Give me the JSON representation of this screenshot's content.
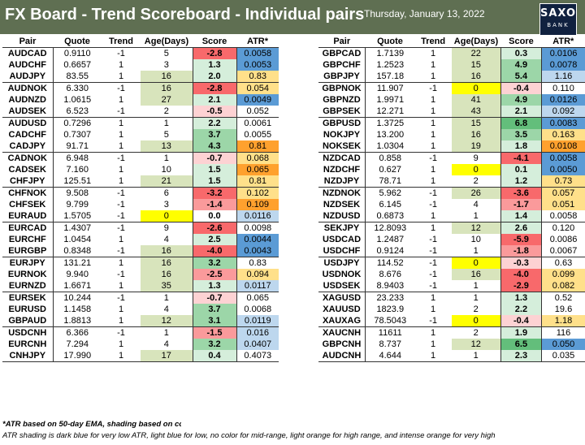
{
  "header": {
    "title": "FX Board - Trend Scoreboard - Individual pairs",
    "date": "Thursday, January 13, 2022",
    "logo_line1": "SAXO",
    "logo_line2": "BANK"
  },
  "columns": [
    "Pair",
    "Quote",
    "Trend",
    "Age(Days)",
    "Score",
    "ATR*"
  ],
  "shading_colors": {
    "age_yellow": "#ffff00",
    "age_green": "#d8e4bc",
    "score_red_strong": "#f8696b",
    "score_red_medium": "#fa9a9b",
    "score_red_light": "#fdd2d3",
    "score_green_strong": "#63be7b",
    "score_green_medium": "#9cd6a8",
    "score_green_light": "#d5eedb",
    "atr_dark_blue": "#5b9bd5",
    "atr_light_blue": "#bdd7ee",
    "atr_light_orange": "#ffe08a",
    "atr_intense_orange": "#ffa12e"
  },
  "left_table": {
    "groups": [
      [
        {
          "pair": "AUDCAD",
          "quote": "0.9110",
          "trend": "-1",
          "age": "5",
          "score": "-2.8",
          "atr": "0.0058",
          "age_c": "",
          "score_c": "score_red_strong",
          "atr_c": "atr_dark_blue"
        },
        {
          "pair": "AUDCHF",
          "quote": "0.6657",
          "trend": "1",
          "age": "3",
          "score": "1.3",
          "atr": "0.0053",
          "age_c": "",
          "score_c": "score_green_light",
          "atr_c": "atr_dark_blue"
        },
        {
          "pair": "AUDJPY",
          "quote": "83.55",
          "trend": "1",
          "age": "16",
          "score": "2.0",
          "atr": "0.83",
          "age_c": "age_green",
          "score_c": "score_green_light",
          "atr_c": "atr_light_orange"
        }
      ],
      [
        {
          "pair": "AUDNOK",
          "quote": "6.330",
          "trend": "-1",
          "age": "16",
          "score": "-2.8",
          "atr": "0.054",
          "age_c": "age_green",
          "score_c": "score_red_strong",
          "atr_c": "atr_light_orange"
        },
        {
          "pair": "AUDNZD",
          "quote": "1.0615",
          "trend": "1",
          "age": "27",
          "score": "2.1",
          "atr": "0.0049",
          "age_c": "age_green",
          "score_c": "score_green_light",
          "atr_c": "atr_dark_blue"
        },
        {
          "pair": "AUDSEK",
          "quote": "6.523",
          "trend": "-1",
          "age": "2",
          "score": "-0.5",
          "atr": "0.052",
          "age_c": "",
          "score_c": "score_red_light",
          "atr_c": ""
        }
      ],
      [
        {
          "pair": "AUDUSD",
          "quote": "0.7296",
          "trend": "1",
          "age": "1",
          "score": "2.2",
          "atr": "0.0061",
          "age_c": "",
          "score_c": "score_green_light",
          "atr_c": ""
        },
        {
          "pair": "CADCHF",
          "quote": "0.7307",
          "trend": "1",
          "age": "5",
          "score": "3.7",
          "atr": "0.0055",
          "age_c": "",
          "score_c": "score_green_medium",
          "atr_c": ""
        },
        {
          "pair": "CADJPY",
          "quote": "91.71",
          "trend": "1",
          "age": "13",
          "score": "4.3",
          "atr": "0.81",
          "age_c": "age_green",
          "score_c": "score_green_medium",
          "atr_c": "atr_intense_orange"
        }
      ],
      [
        {
          "pair": "CADNOK",
          "quote": "6.948",
          "trend": "-1",
          "age": "1",
          "score": "-0.7",
          "atr": "0.068",
          "age_c": "",
          "score_c": "score_red_light",
          "atr_c": "atr_light_orange"
        },
        {
          "pair": "CADSEK",
          "quote": "7.160",
          "trend": "1",
          "age": "10",
          "score": "1.5",
          "atr": "0.065",
          "age_c": "",
          "score_c": "score_green_light",
          "atr_c": "atr_intense_orange"
        },
        {
          "pair": "CHFJPY",
          "quote": "125.51",
          "trend": "1",
          "age": "21",
          "score": "1.5",
          "atr": "0.81",
          "age_c": "age_green",
          "score_c": "score_green_light",
          "atr_c": "atr_light_orange"
        }
      ],
      [
        {
          "pair": "CHFNOK",
          "quote": "9.508",
          "trend": "-1",
          "age": "6",
          "score": "-3.2",
          "atr": "0.102",
          "age_c": "",
          "score_c": "score_red_strong",
          "atr_c": "atr_light_orange"
        },
        {
          "pair": "CHFSEK",
          "quote": "9.799",
          "trend": "-1",
          "age": "3",
          "score": "-1.4",
          "atr": "0.109",
          "age_c": "",
          "score_c": "score_red_medium",
          "atr_c": "atr_intense_orange"
        },
        {
          "pair": "EURAUD",
          "quote": "1.5705",
          "trend": "-1",
          "age": "0",
          "score": "0.0",
          "atr": "0.0116",
          "age_c": "age_yellow",
          "score_c": "",
          "atr_c": "atr_light_blue"
        }
      ],
      [
        {
          "pair": "EURCAD",
          "quote": "1.4307",
          "trend": "-1",
          "age": "9",
          "score": "-2.6",
          "atr": "0.0098",
          "age_c": "",
          "score_c": "score_red_strong",
          "atr_c": ""
        },
        {
          "pair": "EURCHF",
          "quote": "1.0454",
          "trend": "1",
          "age": "4",
          "score": "2.5",
          "atr": "0.0044",
          "age_c": "",
          "score_c": "score_green_light",
          "atr_c": "atr_dark_blue"
        },
        {
          "pair": "EURGBP",
          "quote": "0.8348",
          "trend": "-1",
          "age": "16",
          "score": "-4.0",
          "atr": "0.0043",
          "age_c": "age_green",
          "score_c": "score_red_strong",
          "atr_c": "atr_dark_blue"
        }
      ],
      [
        {
          "pair": "EURJPY",
          "quote": "131.21",
          "trend": "1",
          "age": "16",
          "score": "3.2",
          "atr": "0.83",
          "age_c": "age_green",
          "score_c": "score_green_medium",
          "atr_c": ""
        },
        {
          "pair": "EURNOK",
          "quote": "9.940",
          "trend": "-1",
          "age": "16",
          "score": "-2.5",
          "atr": "0.094",
          "age_c": "age_green",
          "score_c": "score_red_medium",
          "atr_c": "atr_light_orange"
        },
        {
          "pair": "EURNZD",
          "quote": "1.6671",
          "trend": "1",
          "age": "35",
          "score": "1.3",
          "atr": "0.0117",
          "age_c": "age_green",
          "score_c": "score_green_light",
          "atr_c": "atr_light_blue"
        }
      ],
      [
        {
          "pair": "EURSEK",
          "quote": "10.244",
          "trend": "-1",
          "age": "1",
          "score": "-0.7",
          "atr": "0.065",
          "age_c": "",
          "score_c": "score_red_light",
          "atr_c": ""
        },
        {
          "pair": "EURUSD",
          "quote": "1.1458",
          "trend": "1",
          "age": "4",
          "score": "3.7",
          "atr": "0.0068",
          "age_c": "",
          "score_c": "score_green_medium",
          "atr_c": ""
        },
        {
          "pair": "GBPAUD",
          "quote": "1.8813",
          "trend": "1",
          "age": "12",
          "score": "3.1",
          "atr": "0.0119",
          "age_c": "age_green",
          "score_c": "score_green_medium",
          "atr_c": "atr_light_blue"
        }
      ],
      [
        {
          "pair": "USDCNH",
          "quote": "6.366",
          "trend": "-1",
          "age": "1",
          "score": "-1.5",
          "atr": "0.016",
          "age_c": "",
          "score_c": "score_red_medium",
          "atr_c": "atr_light_blue"
        },
        {
          "pair": "EURCNH",
          "quote": "7.294",
          "trend": "1",
          "age": "4",
          "score": "3.2",
          "atr": "0.0407",
          "age_c": "",
          "score_c": "score_green_medium",
          "atr_c": "atr_light_blue"
        },
        {
          "pair": "CNHJPY",
          "quote": "17.990",
          "trend": "1",
          "age": "17",
          "score": "0.4",
          "atr": "0.4073",
          "age_c": "age_green",
          "score_c": "score_green_light",
          "atr_c": ""
        }
      ]
    ]
  },
  "right_table": {
    "groups": [
      [
        {
          "pair": "GBPCAD",
          "quote": "1.7139",
          "trend": "1",
          "age": "22",
          "score": "0.3",
          "atr": "0.0106",
          "age_c": "age_green",
          "score_c": "score_green_light",
          "atr_c": "atr_dark_blue"
        },
        {
          "pair": "GBPCHF",
          "quote": "1.2523",
          "trend": "1",
          "age": "15",
          "score": "4.9",
          "atr": "0.0078",
          "age_c": "age_green",
          "score_c": "score_green_medium",
          "atr_c": "atr_dark_blue"
        },
        {
          "pair": "GBPJPY",
          "quote": "157.18",
          "trend": "1",
          "age": "16",
          "score": "5.4",
          "atr": "1.16",
          "age_c": "age_green",
          "score_c": "score_green_medium",
          "atr_c": "atr_light_blue"
        }
      ],
      [
        {
          "pair": "GBPNOK",
          "quote": "11.907",
          "trend": "-1",
          "age": "0",
          "score": "-0.4",
          "atr": "0.110",
          "age_c": "age_yellow",
          "score_c": "score_red_light",
          "atr_c": ""
        },
        {
          "pair": "GBPNZD",
          "quote": "1.9971",
          "trend": "1",
          "age": "41",
          "score": "4.9",
          "atr": "0.0126",
          "age_c": "age_green",
          "score_c": "score_green_medium",
          "atr_c": "atr_dark_blue"
        },
        {
          "pair": "GBPSEK",
          "quote": "12.271",
          "trend": "1",
          "age": "43",
          "score": "2.1",
          "atr": "0.092",
          "age_c": "age_green",
          "score_c": "score_green_light",
          "atr_c": "atr_light_blue"
        }
      ],
      [
        {
          "pair": "GBPUSD",
          "quote": "1.3725",
          "trend": "1",
          "age": "15",
          "score": "6.8",
          "atr": "0.0083",
          "age_c": "age_green",
          "score_c": "score_green_strong",
          "atr_c": "atr_dark_blue"
        },
        {
          "pair": "NOKJPY",
          "quote": "13.200",
          "trend": "1",
          "age": "16",
          "score": "3.5",
          "atr": "0.163",
          "age_c": "age_green",
          "score_c": "score_green_medium",
          "atr_c": "atr_light_orange"
        },
        {
          "pair": "NOKSEK",
          "quote": "1.0304",
          "trend": "1",
          "age": "19",
          "score": "1.8",
          "atr": "0.0108",
          "age_c": "age_green",
          "score_c": "score_green_light",
          "atr_c": "atr_intense_orange"
        }
      ],
      [
        {
          "pair": "NZDCAD",
          "quote": "0.858",
          "trend": "-1",
          "age": "9",
          "score": "-4.1",
          "atr": "0.0058",
          "age_c": "",
          "score_c": "score_red_strong",
          "atr_c": "atr_dark_blue"
        },
        {
          "pair": "NZDCHF",
          "quote": "0.627",
          "trend": "1",
          "age": "0",
          "score": "0.1",
          "atr": "0.0050",
          "age_c": "age_yellow",
          "score_c": "score_green_light",
          "atr_c": "atr_dark_blue"
        },
        {
          "pair": "NZDJPY",
          "quote": "78.71",
          "trend": "1",
          "age": "2",
          "score": "1.2",
          "atr": "0.73",
          "age_c": "",
          "score_c": "score_green_light",
          "atr_c": "atr_light_orange"
        }
      ],
      [
        {
          "pair": "NZDNOK",
          "quote": "5.962",
          "trend": "-1",
          "age": "26",
          "score": "-3.6",
          "atr": "0.057",
          "age_c": "age_green",
          "score_c": "score_red_strong",
          "atr_c": "atr_light_orange"
        },
        {
          "pair": "NZDSEK",
          "quote": "6.145",
          "trend": "-1",
          "age": "4",
          "score": "-1.7",
          "atr": "0.051",
          "age_c": "",
          "score_c": "score_red_medium",
          "atr_c": "atr_light_orange"
        },
        {
          "pair": "NZDUSD",
          "quote": "0.6873",
          "trend": "1",
          "age": "1",
          "score": "1.4",
          "atr": "0.0058",
          "age_c": "",
          "score_c": "score_green_light",
          "atr_c": ""
        }
      ],
      [
        {
          "pair": "SEKJPY",
          "quote": "12.8093",
          "trend": "1",
          "age": "12",
          "score": "2.6",
          "atr": "0.120",
          "age_c": "age_green",
          "score_c": "score_green_light",
          "atr_c": ""
        },
        {
          "pair": "USDCAD",
          "quote": "1.2487",
          "trend": "-1",
          "age": "10",
          "score": "-5.9",
          "atr": "0.0086",
          "age_c": "",
          "score_c": "score_red_strong",
          "atr_c": ""
        },
        {
          "pair": "USDCHF",
          "quote": "0.9124",
          "trend": "-1",
          "age": "1",
          "score": "-1.8",
          "atr": "0.0067",
          "age_c": "",
          "score_c": "score_red_medium",
          "atr_c": ""
        }
      ],
      [
        {
          "pair": "USDJPY",
          "quote": "114.52",
          "trend": "-1",
          "age": "0",
          "score": "-0.3",
          "atr": "0.63",
          "age_c": "age_yellow",
          "score_c": "score_red_light",
          "atr_c": ""
        },
        {
          "pair": "USDNOK",
          "quote": "8.676",
          "trend": "-1",
          "age": "16",
          "score": "-4.0",
          "atr": "0.099",
          "age_c": "age_green",
          "score_c": "score_red_strong",
          "atr_c": "atr_light_orange"
        },
        {
          "pair": "USDSEK",
          "quote": "8.9403",
          "trend": "-1",
          "age": "1",
          "score": "-2.9",
          "atr": "0.082",
          "age_c": "",
          "score_c": "score_red_strong",
          "atr_c": "atr_light_orange"
        }
      ],
      [
        {
          "pair": "XAGUSD",
          "quote": "23.233",
          "trend": "1",
          "age": "1",
          "score": "1.3",
          "atr": "0.52",
          "age_c": "",
          "score_c": "score_green_light",
          "atr_c": ""
        },
        {
          "pair": "XAUUSD",
          "quote": "1823.9",
          "trend": "1",
          "age": "2",
          "score": "2.2",
          "atr": "19.6",
          "age_c": "",
          "score_c": "score_green_light",
          "atr_c": ""
        },
        {
          "pair": "XAUXAG",
          "quote": "78.5043",
          "trend": "-1",
          "age": "0",
          "score": "-0.4",
          "atr": "1.18",
          "age_c": "age_yellow",
          "score_c": "score_red_light",
          "atr_c": "atr_light_orange"
        }
      ],
      [
        {
          "pair": "XAUCNH",
          "quote": "11611",
          "trend": "1",
          "age": "2",
          "score": "1.9",
          "atr": "116",
          "age_c": "",
          "score_c": "score_green_light",
          "atr_c": ""
        },
        {
          "pair": "GBPCNH",
          "quote": "8.737",
          "trend": "1",
          "age": "12",
          "score": "6.5",
          "atr": "0.050",
          "age_c": "age_green",
          "score_c": "score_green_strong",
          "atr_c": "atr_dark_blue"
        },
        {
          "pair": "AUDCNH",
          "quote": "4.644",
          "trend": "1",
          "age": "1",
          "score": "2.3",
          "atr": "0.035",
          "age_c": "",
          "score_c": "score_green_light",
          "atr_c": ""
        }
      ]
    ]
  },
  "footer": {
    "note1": "*ATR based on 50-day EMA, shading based on co",
    "note2": "ATR shading is dark blue for very low ATR, light blue for low, no color for mid-range, light orange for high range, and intense orange for very high"
  }
}
